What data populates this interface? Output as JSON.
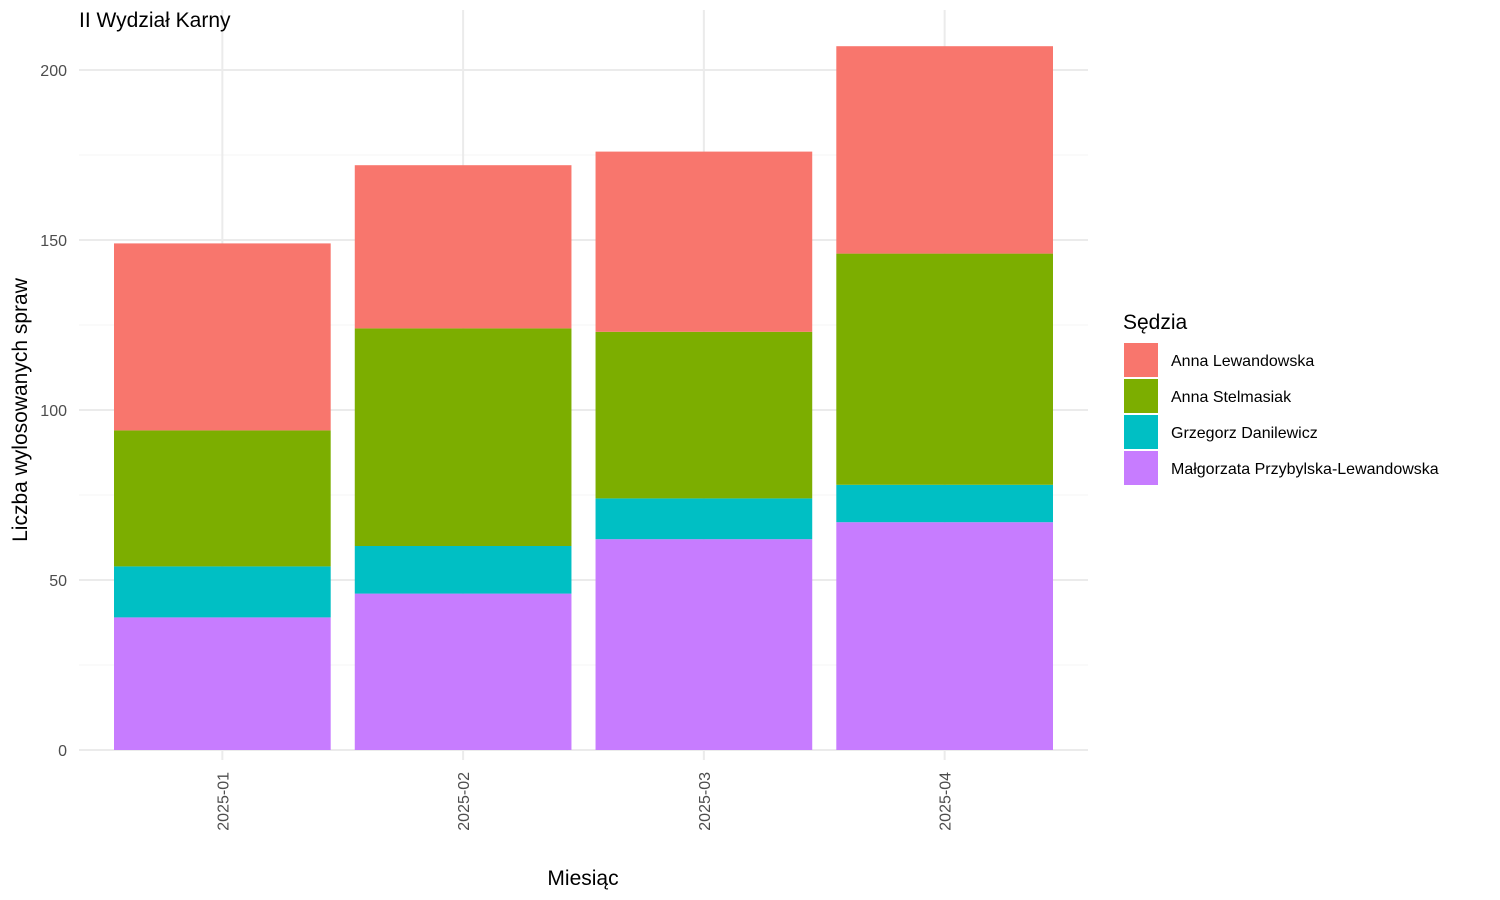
{
  "chart_data": {
    "type": "bar",
    "stacked": true,
    "title": "II Wydział Karny",
    "xlabel": "Miesiąc",
    "ylabel": "Liczba wylosowanych spraw",
    "categories": [
      "2025-01",
      "2025-02",
      "2025-03",
      "2025-04"
    ],
    "ylim": [
      0,
      210
    ],
    "yticks": [
      0,
      50,
      100,
      150,
      200
    ],
    "grid": true,
    "legend": {
      "title": "Sędzia",
      "position": "right"
    },
    "series": [
      {
        "name": "Małgorzata Przybylska-Lewandowska",
        "color": "#C77CFF",
        "values": [
          39,
          46,
          62,
          67
        ]
      },
      {
        "name": "Grzegorz Danilewicz",
        "color": "#00BFC4",
        "values": [
          15,
          14,
          12,
          11
        ]
      },
      {
        "name": "Anna Stelmasiak",
        "color": "#7CAE00",
        "values": [
          40,
          64,
          49,
          68
        ]
      },
      {
        "name": "Anna Lewandowska",
        "color": "#F8766D",
        "values": [
          55,
          48,
          53,
          61
        ]
      }
    ],
    "legend_order": [
      "Anna Lewandowska",
      "Anna Stelmasiak",
      "Grzegorz Danilewicz",
      "Małgorzata Przybylska-Lewandowska"
    ]
  }
}
